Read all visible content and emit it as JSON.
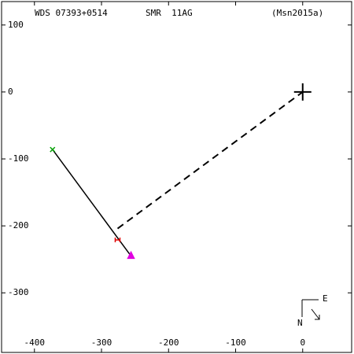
{
  "chart_data": {
    "type": "line",
    "header": [
      "WDS 07393+0514",
      "SMR  11AG",
      "(Msn2015a)"
    ],
    "compass": [
      "E",
      "N"
    ],
    "xlim": [
      -449,
      73
    ],
    "ylim": [
      -389,
      135
    ],
    "xticks": [
      -400,
      -300,
      -200,
      -100,
      0
    ],
    "yticks": [
      -300,
      -200,
      -100,
      0,
      100
    ],
    "series": [
      {
        "color": "#000000",
        "dash": false,
        "x": [
          -373,
          -256
        ],
        "values": [
          -86,
          -245
        ]
      },
      {
        "color": "#000000",
        "dash": true,
        "x": [
          -276,
          0
        ],
        "values": [
          -204,
          0
        ]
      }
    ],
    "points": [
      {
        "x": -373,
        "y": -86,
        "color": "#00a000"
      },
      {
        "x": -276,
        "y": -221,
        "color": "#e00000"
      },
      {
        "x": -256,
        "y": -245,
        "color": "#e000e0"
      }
    ],
    "primary": {
      "x": 0,
      "y": 0
    }
  }
}
